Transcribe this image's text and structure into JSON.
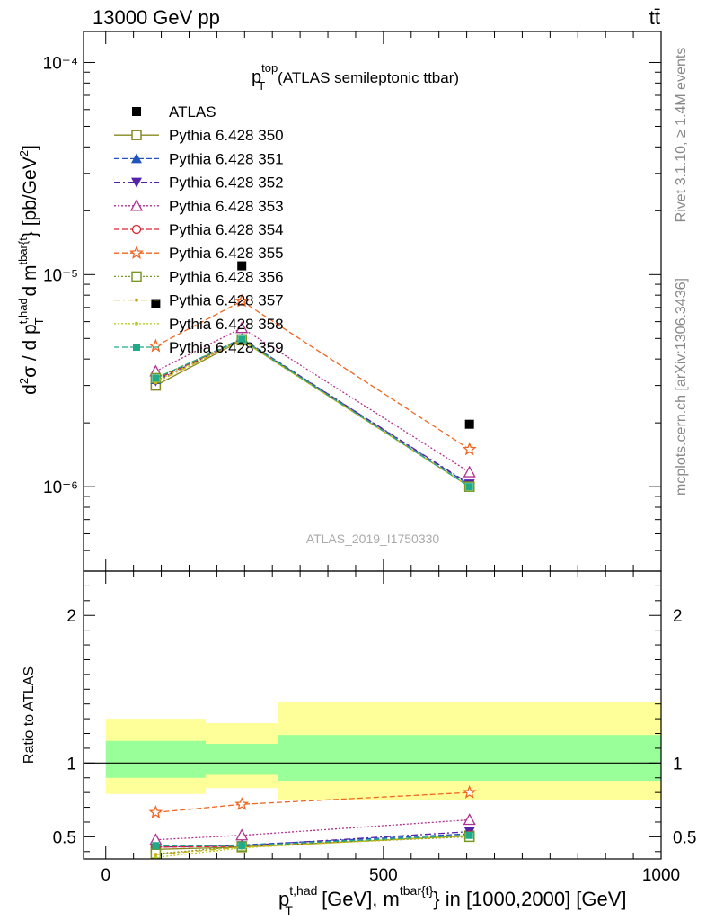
{
  "header": {
    "energy_label": "13000 GeV pp",
    "process_label": "tt̄",
    "side_rivet": "Rivet 3.1.10, ≥ 1.4M events",
    "side_mcplots": "mcplots.cern.ch [arXiv:1306.3436]"
  },
  "chart_data": [
    {
      "type": "line",
      "panel": "main",
      "title_main": "p",
      "title_sup": "top",
      "title_sub": "T",
      "title_rest": "(ATLAS semileptonic ttbar)",
      "ylabel": "d²σ / d p_T^{t,had} d m^{tbar{t}} [pb/GeV²]",
      "yscale": "log",
      "ylim": [
        4e-07,
        0.00014
      ],
      "xlim": [
        -40,
        1000
      ],
      "ytick_labels": [
        "10⁻⁶",
        "10⁻⁵",
        "10⁻⁴"
      ],
      "watermark": "ATLAS_2019_I1750330",
      "x": [
        90,
        245,
        655
      ],
      "data": {
        "name": "ATLAS",
        "values": [
          7.3e-06,
          1.1e-05,
          1.97e-06
        ],
        "color": "#000000"
      },
      "series": [
        {
          "name": "Pythia 6.428 350",
          "values": [
            3e-06,
            4.9e-06,
            1e-06
          ],
          "color": "#888822",
          "marker": "square-open",
          "dash": "solid"
        },
        {
          "name": "Pythia 6.428 351",
          "values": [
            3.2e-06,
            5e-06,
            1.02e-06
          ],
          "color": "#2255bb",
          "marker": "triangle-up",
          "dash": "dashed"
        },
        {
          "name": "Pythia 6.428 352",
          "values": [
            3.15e-06,
            4.95e-06,
            1.03e-06
          ],
          "color": "#5522aa",
          "marker": "triangle-down",
          "dash": "dashdot"
        },
        {
          "name": "Pythia 6.428 353",
          "values": [
            3.5e-06,
            5.6e-06,
            1.17e-06
          ],
          "color": "#b03090",
          "marker": "triangle-open",
          "dash": "dotted"
        },
        {
          "name": "Pythia 6.428 354",
          "values": [
            3.2e-06,
            4.95e-06,
            1e-06
          ],
          "color": "#dd2233",
          "marker": "circle-open",
          "dash": "dashed"
        },
        {
          "name": "Pythia 6.428 355",
          "values": [
            4.6e-06,
            7.5e-06,
            1.5e-06
          ],
          "color": "#ee6622",
          "marker": "star-open",
          "dash": "dashed"
        },
        {
          "name": "Pythia 6.428 356",
          "values": [
            3.25e-06,
            4.95e-06,
            1e-06
          ],
          "color": "#779922",
          "marker": "square-open",
          "dash": "dotted"
        },
        {
          "name": "Pythia 6.428 357",
          "values": [
            3.1e-06,
            4.9e-06,
            1e-06
          ],
          "color": "#ccaa11",
          "marker": "dot",
          "dash": "dashdot"
        },
        {
          "name": "Pythia 6.428 358",
          "values": [
            3.15e-06,
            4.9e-06,
            1e-06
          ],
          "color": "#bbcc22",
          "marker": "dot",
          "dash": "dotted"
        },
        {
          "name": "Pythia 6.428 359",
          "values": [
            3.25e-06,
            4.95e-06,
            1e-06
          ],
          "color": "#22aa88",
          "marker": "square-filled",
          "dash": "dashed"
        }
      ]
    },
    {
      "type": "line",
      "panel": "ratio",
      "ylabel": "Ratio to ATLAS",
      "ylim": [
        0.35,
        2.3
      ],
      "yticks": [
        0.5,
        1,
        2
      ],
      "ytick_labels": [
        "0.5",
        "1",
        "2"
      ],
      "xlim": [
        -40,
        1000
      ],
      "xticks": [
        0,
        500,
        1000
      ],
      "xtick_labels": [
        "0",
        "500",
        "1000"
      ],
      "xlabel_main": "p",
      "xlabel_sup1": "t,had",
      "xlabel_sub1": "T",
      "xlabel_mid": " [GeV], m",
      "xlabel_sup2": "tbar{t}",
      "xlabel_end": "} in [1000,2000] [GeV]",
      "bands": [
        {
          "x0": 0,
          "x1": 180,
          "inner": [
            0.9,
            1.15
          ],
          "outer": [
            0.79,
            1.3
          ]
        },
        {
          "x0": 180,
          "x1": 310,
          "inner": [
            0.92,
            1.13
          ],
          "outer": [
            0.83,
            1.27
          ]
        },
        {
          "x0": 310,
          "x1": 1000,
          "inner": [
            0.88,
            1.19
          ],
          "outer": [
            0.75,
            1.41
          ]
        }
      ],
      "band_colors": {
        "inner": "#99ff99",
        "outer": "#ffff99"
      },
      "x": [
        90,
        245,
        655
      ],
      "series": [
        {
          "name": "Pythia 6.428 350",
          "values": [
            0.415,
            0.43,
            0.508
          ]
        },
        {
          "name": "Pythia 6.428 351",
          "values": [
            0.435,
            0.445,
            0.52
          ]
        },
        {
          "name": "Pythia 6.428 352",
          "values": [
            0.43,
            0.44,
            0.535
          ]
        },
        {
          "name": "Pythia 6.428 353",
          "values": [
            0.48,
            0.51,
            0.615
          ]
        },
        {
          "name": "Pythia 6.428 354",
          "values": [
            0.43,
            0.435,
            0.51
          ]
        },
        {
          "name": "Pythia 6.428 355",
          "values": [
            0.665,
            0.72,
            0.8
          ]
        },
        {
          "name": "Pythia 6.428 356",
          "values": [
            0.385,
            0.435,
            0.5
          ]
        },
        {
          "name": "Pythia 6.428 357",
          "values": [
            0.38,
            0.43,
            0.505
          ]
        },
        {
          "name": "Pythia 6.428 358",
          "values": [
            0.36,
            0.425,
            0.51
          ]
        },
        {
          "name": "Pythia 6.428 359",
          "values": [
            0.44,
            0.44,
            0.51
          ]
        }
      ]
    }
  ]
}
